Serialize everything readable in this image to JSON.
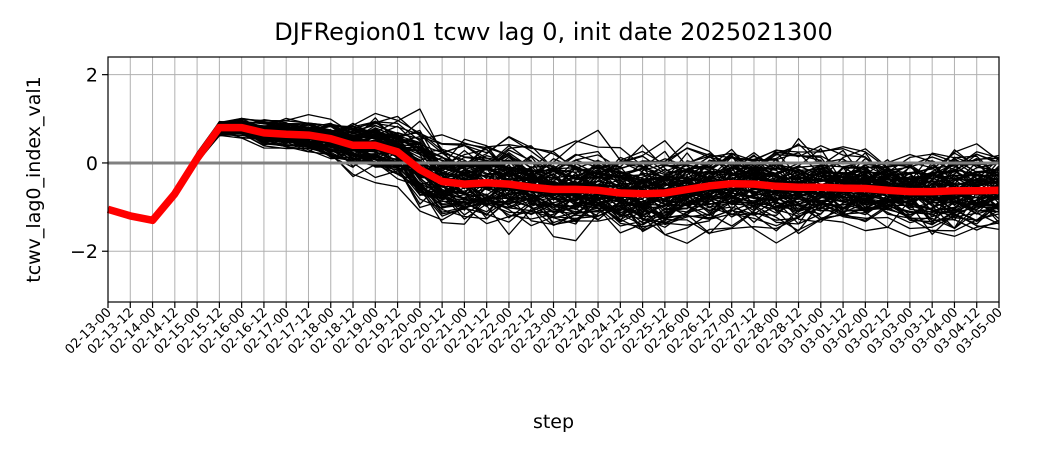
{
  "chart_data": {
    "type": "line",
    "title": "DJFRegion01 tcwv lag 0, init date 2025021300",
    "xlabel": "step",
    "ylabel": "tcwv_lag0_index_val1",
    "ylim": [
      -3.15,
      2.4
    ],
    "yticks": [
      2,
      0,
      -2
    ],
    "ytick_labels": [
      "2",
      "0",
      "−2"
    ],
    "x": [
      "02-13-00",
      "02-13-12",
      "02-14-00",
      "02-14-12",
      "02-15-00",
      "02-15-12",
      "02-16-00",
      "02-16-12",
      "02-17-00",
      "02-17-12",
      "02-18-00",
      "02-18-12",
      "02-19-00",
      "02-19-12",
      "02-20-00",
      "02-20-12",
      "02-21-00",
      "02-21-12",
      "02-22-00",
      "02-22-12",
      "02-23-00",
      "02-23-12",
      "02-24-00",
      "02-24-12",
      "02-25-00",
      "02-25-12",
      "02-26-00",
      "02-26-12",
      "02-27-00",
      "02-27-12",
      "02-28-00",
      "02-28-12",
      "03-01-00",
      "03-01-12",
      "03-02-00",
      "03-02-12",
      "03-03-00",
      "03-03-12",
      "03-04-00",
      "03-04-12",
      "03-05-00"
    ],
    "grid": true,
    "reference_line": {
      "y": 0,
      "color": "#808080"
    },
    "ensemble": {
      "color": "#000000",
      "members": 100
    },
    "series": [
      {
        "role": "ensemble-mean",
        "color": "#ff0000",
        "values": [
          -1.05,
          -1.2,
          -1.3,
          -0.7,
          0.1,
          0.8,
          0.8,
          0.68,
          0.65,
          0.63,
          0.55,
          0.4,
          0.4,
          0.25,
          -0.15,
          -0.42,
          -0.48,
          -0.45,
          -0.48,
          -0.55,
          -0.6,
          -0.6,
          -0.62,
          -0.68,
          -0.7,
          -0.68,
          -0.6,
          -0.52,
          -0.47,
          -0.48,
          -0.53,
          -0.55,
          -0.55,
          -0.57,
          -0.58,
          -0.62,
          -0.65,
          -0.65,
          -0.63,
          -0.63,
          -0.62
        ]
      }
    ]
  }
}
